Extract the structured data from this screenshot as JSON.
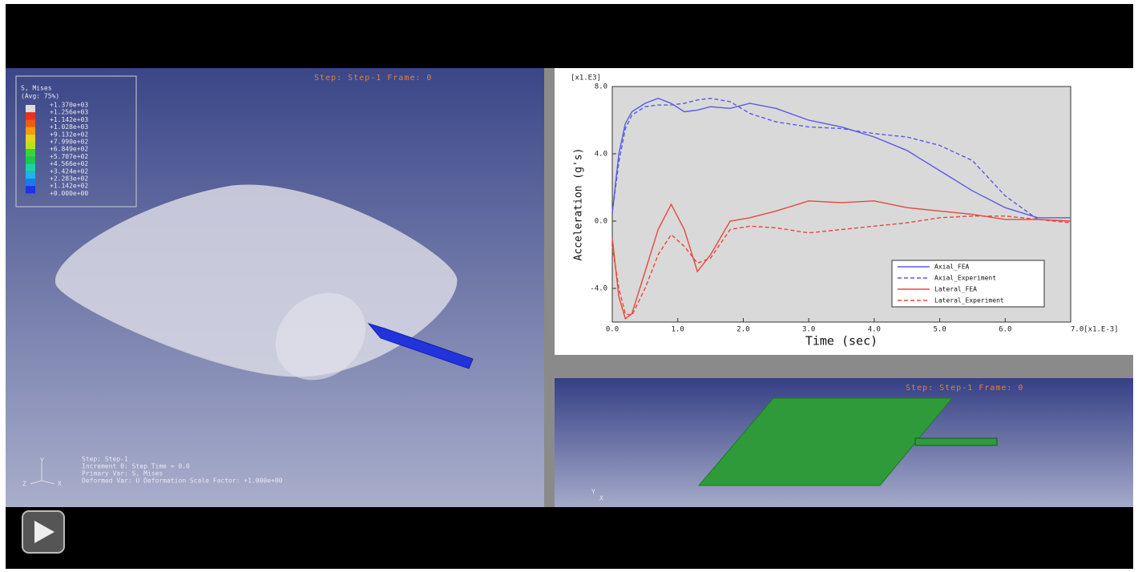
{
  "left_view": {
    "header": "Step: Step-1     Frame: 0",
    "legend": {
      "title": "S, Mises",
      "subtitle": "(Avg: 75%)",
      "levels": [
        "+1.370e+03",
        "+1.256e+03",
        "+1.142e+03",
        "+1.028e+03",
        "+9.132e+02",
        "+7.990e+02",
        "+6.849e+02",
        "+5.707e+02",
        "+4.566e+02",
        "+3.424e+02",
        "+2.283e+02",
        "+1.142e+02",
        "+0.000e+00"
      ]
    },
    "info": [
      "Step: Step-1",
      "Increment      0: Step Time =   0.0",
      "Primary Var: S, Mises",
      "Deformed Var: U   Deformation Scale Factor: +1.000e+00"
    ],
    "triad": [
      "Y",
      "Z",
      "X"
    ]
  },
  "plot": {
    "type": "line",
    "y_multiplier": "[x1.E3]",
    "xlabel": "Time (sec)",
    "ylabel": "Acceleration (g's)",
    "xlim": [
      0,
      7
    ],
    "ylim": [
      -6,
      8
    ],
    "xticks": [
      {
        "value": 0,
        "label": "0.0"
      },
      {
        "value": 1,
        "label": "1.0"
      },
      {
        "value": 2,
        "label": "2.0"
      },
      {
        "value": 3,
        "label": "3.0"
      },
      {
        "value": 4,
        "label": "4.0"
      },
      {
        "value": 5,
        "label": "5.0"
      },
      {
        "value": 6,
        "label": "6.0"
      },
      {
        "value": 7,
        "label": "7.0[x1.E-3]"
      }
    ],
    "yticks": [
      {
        "value": -4,
        "label": "-4.0"
      },
      {
        "value": 0,
        "label": "0.0"
      },
      {
        "value": 4,
        "label": "4.0"
      },
      {
        "value": 8,
        "label": "8.0"
      }
    ],
    "x": [
      0,
      0.1,
      0.2,
      0.3,
      0.5,
      0.7,
      0.9,
      1.1,
      1.3,
      1.5,
      1.8,
      2.1,
      2.5,
      3.0,
      3.5,
      4.0,
      4.5,
      5.0,
      5.5,
      6.0,
      6.5,
      7.0
    ],
    "series": [
      {
        "name": "Axial_FEA",
        "color": "#5a5ae8",
        "dashed": false,
        "values": [
          0.5,
          4.0,
          5.8,
          6.5,
          7.0,
          7.3,
          7.0,
          6.5,
          6.6,
          6.8,
          6.7,
          7.0,
          6.7,
          6.0,
          5.6,
          5.0,
          4.2,
          3.0,
          1.8,
          0.8,
          0.2,
          0.2
        ]
      },
      {
        "name": "Axial_Experiment",
        "color": "#5a5ae8",
        "dashed": true,
        "values": [
          0.5,
          3.5,
          5.5,
          6.3,
          6.8,
          6.9,
          6.9,
          7.0,
          7.2,
          7.3,
          7.1,
          6.4,
          5.9,
          5.6,
          5.5,
          5.2,
          5.0,
          4.5,
          3.6,
          1.5,
          0.1,
          0.0
        ]
      },
      {
        "name": "Lateral_FEA",
        "color": "#e8483c",
        "dashed": false,
        "values": [
          -1.0,
          -4.5,
          -5.8,
          -5.5,
          -3.0,
          -0.5,
          1.0,
          -0.5,
          -3.0,
          -2.0,
          0.0,
          0.2,
          0.6,
          1.2,
          1.1,
          1.2,
          0.8,
          0.6,
          0.4,
          0.1,
          0.1,
          0.0
        ]
      },
      {
        "name": "Lateral_Experiment",
        "color": "#e8483c",
        "dashed": true,
        "values": [
          -1.5,
          -4.0,
          -5.5,
          -5.6,
          -4.0,
          -2.0,
          -0.8,
          -1.5,
          -2.5,
          -2.2,
          -0.5,
          -0.3,
          -0.4,
          -0.7,
          -0.5,
          -0.3,
          -0.1,
          0.2,
          0.3,
          0.3,
          0.1,
          -0.1
        ]
      }
    ]
  },
  "bottom_view": {
    "header": "Step: Step-1     Frame: 0",
    "triad": [
      "Y",
      "X"
    ]
  }
}
